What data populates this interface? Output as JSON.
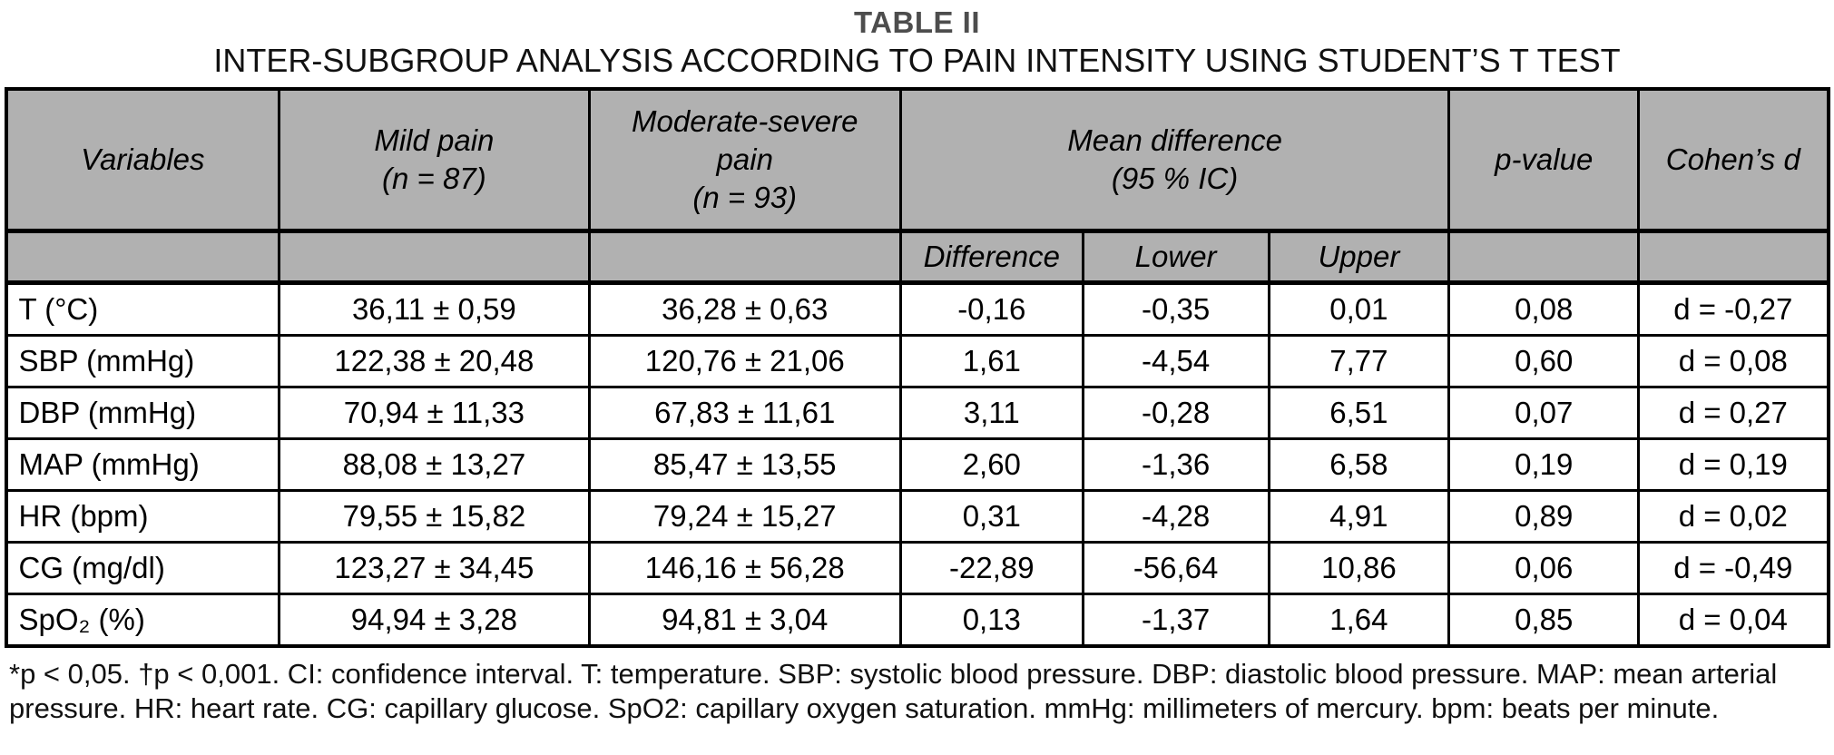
{
  "title": "TABLE II",
  "subtitle": "INTER-SUBGROUP ANALYSIS ACCORDING TO PAIN INTENSITY USING STUDENT’S T TEST",
  "table": {
    "header": {
      "variables": "Variables",
      "mild_pain": "Mild pain\n(n = 87)",
      "moderate_severe_pain": "Moderate-severe\npain\n(n = 93)",
      "mean_difference": "Mean difference\n(95 % IC)",
      "p_value": "p-value",
      "cohens_d": "Cohen’s d",
      "sub_difference": "Difference",
      "sub_lower": "Lower",
      "sub_upper": "Upper"
    },
    "rows": [
      [
        "T (°C)",
        "36,11 ± 0,59",
        "36,28 ± 0,63",
        "-0,16",
        "-0,35",
        "0,01",
        "0,08",
        "d = -0,27"
      ],
      [
        "SBP (mmHg)",
        "122,38 ± 20,48",
        "120,76 ± 21,06",
        "1,61",
        "-4,54",
        "7,77",
        "0,60",
        "d = 0,08"
      ],
      [
        "DBP (mmHg)",
        "70,94 ± 11,33",
        "67,83 ± 11,61",
        "3,11",
        "-0,28",
        "6,51",
        "0,07",
        "d = 0,27"
      ],
      [
        "MAP (mmHg)",
        "88,08 ± 13,27",
        "85,47 ± 13,55",
        "2,60",
        "-1,36",
        "6,58",
        "0,19",
        "d = 0,19"
      ],
      [
        "HR (bpm)",
        "79,55 ± 15,82",
        "79,24 ± 15,27",
        "0,31",
        "-4,28",
        "4,91",
        "0,89",
        "d = 0,02"
      ],
      [
        "CG (mg/dl)",
        "123,27 ± 34,45",
        "146,16 ± 56,28",
        "-22,89",
        "-56,64",
        "10,86",
        "0,06",
        "d = -0,49"
      ],
      [
        "SpO₂ (%)",
        "94,94 ± 3,28",
        "94,81 ± 3,04",
        "0,13",
        "-1,37",
        "1,64",
        "0,85",
        "d = 0,04"
      ]
    ]
  },
  "footnote": "*p < 0,05. †p < 0,001. CI: confidence interval. T: temperature. SBP: systolic blood pressure. DBP: diastolic blood pressure. MAP: mean arterial pressure. HR: heart rate. CG: capillary glucose. SpO2: capillary oxygen saturation. mmHg: millimeters of mercury. bpm: beats per minute."
}
